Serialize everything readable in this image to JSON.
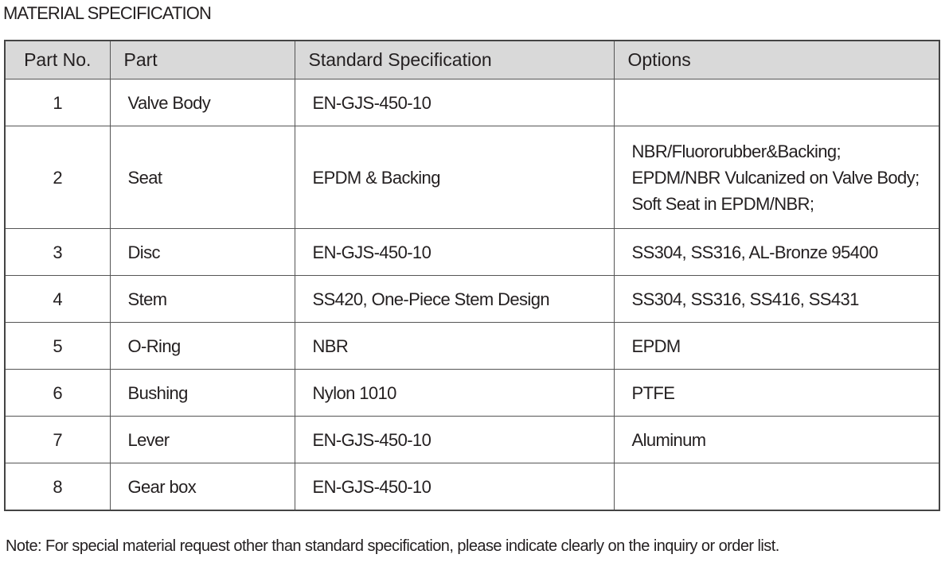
{
  "title": "MATERIAL SPECIFICATION",
  "table": {
    "headers": [
      "Part No.",
      "Part",
      "Standard Specification",
      "Options"
    ],
    "rows": [
      {
        "no": "1",
        "part": "Valve Body",
        "spec": "EN-GJS-450-10",
        "options": []
      },
      {
        "no": "2",
        "part": "Seat",
        "spec": "EPDM & Backing",
        "options": [
          "NBR/Fluororubber&Backing;",
          "EPDM/NBR Vulcanized on Valve Body;",
          "Soft Seat in EPDM/NBR;"
        ]
      },
      {
        "no": "3",
        "part": "Disc",
        "spec": "EN-GJS-450-10",
        "options": [
          "SS304, SS316, AL-Bronze  95400"
        ]
      },
      {
        "no": "4",
        "part": "Stem",
        "spec": "SS420, One-Piece Stem Design",
        "options": [
          "SS304, SS316, SS416, SS431"
        ]
      },
      {
        "no": "5",
        "part": "O-Ring",
        "spec": "NBR",
        "options": [
          "EPDM"
        ]
      },
      {
        "no": "6",
        "part": "Bushing",
        "spec": "Nylon 1010",
        "options": [
          "PTFE"
        ]
      },
      {
        "no": "7",
        "part": "Lever",
        "spec": "EN-GJS-450-10",
        "options": [
          "Aluminum"
        ]
      },
      {
        "no": "8",
        "part": "Gear box",
        "spec": "EN-GJS-450-10",
        "options": []
      }
    ]
  },
  "note": "Note: For special material request other than standard specification, please indicate clearly on the inquiry or order list.",
  "colors": {
    "header_bg": "#d9d9d9",
    "border": "#444444"
  }
}
